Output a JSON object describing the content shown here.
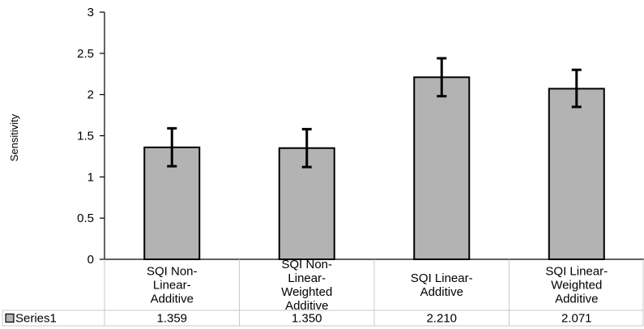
{
  "chart_data": {
    "type": "bar",
    "ylabel": "Sensitivity",
    "xlabel": "",
    "title": "",
    "ylim": [
      0,
      3
    ],
    "yticks": [
      "0",
      "0.5",
      "1",
      "1.5",
      "2",
      "2.5",
      "3"
    ],
    "ytick_values": [
      0,
      0.5,
      1,
      1.5,
      2,
      2.5,
      3
    ],
    "categories": [
      [
        "SQI Non-",
        "Linear-",
        "Additive"
      ],
      [
        "SQI Non-",
        "Linear-",
        "Weighted",
        "Additive"
      ],
      [
        "SQI Linear-",
        "Additive"
      ],
      [
        "SQI Linear-",
        "Weighted",
        "Additive"
      ]
    ],
    "series": [
      {
        "name": "Series1",
        "values": [
          1.359,
          1.35,
          2.21,
          2.071
        ],
        "value_labels": [
          "1.359",
          "1.350",
          "2.210",
          "2.071"
        ],
        "error_low": [
          1.13,
          1.12,
          1.98,
          1.85
        ],
        "error_high": [
          1.59,
          1.58,
          2.44,
          2.3
        ],
        "color": "#b3b3b3"
      }
    ],
    "grid": false,
    "legend": "data-table",
    "data_table": true
  }
}
